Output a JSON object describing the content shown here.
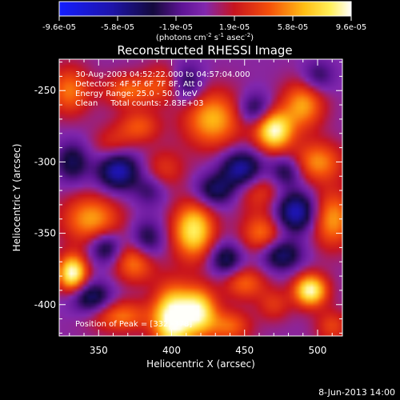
{
  "chart_data": {
    "type": "heatmap",
    "title": "Reconstructed RHESSI Image",
    "xlabel": "Heliocentric X (arcsec)",
    "ylabel": "Heliocentric Y (arcsec)",
    "xlim": [
      323,
      517
    ],
    "ylim": [
      -422,
      -228
    ],
    "xticks": [
      350,
      400,
      450,
      500
    ],
    "yticks": [
      -250,
      -300,
      -350,
      -400
    ],
    "colorbar": {
      "ticks": [
        "-9.6e-05",
        "-5.8e-05",
        "-1.9e-05",
        "1.9e-05",
        "5.8e-05",
        "9.6e-05"
      ],
      "range": [
        -9.6e-05,
        9.6e-05
      ],
      "label_main": "(photons cm",
      "label_exp1": "-2",
      "label_mid": " s",
      "label_exp2": "-1",
      "label_tail": " asec",
      "label_exp3": "-2",
      "label_end": ")"
    },
    "annotations": [
      "30-Aug-2003 04:52:22.000 to 04:57:04.000",
      "Detectors: 4F 5F 6F 7F 8F, Att 0",
      "Energy Range: 25.0 - 50.0 keV",
      "Clean     Total counts: 2.83E+03"
    ],
    "peak_text": "Position of Peak = [332,-378]",
    "blobs": [
      {
        "x": 332,
        "y": -378,
        "v": 1.0,
        "sx": 7,
        "sy": 9
      },
      {
        "x": 400,
        "y": -410,
        "v": 1.0,
        "sx": 9,
        "sy": 16
      },
      {
        "x": 418,
        "y": -405,
        "v": 0.9,
        "sx": 9,
        "sy": 12
      },
      {
        "x": 470,
        "y": -278,
        "v": 0.95,
        "sx": 9,
        "sy": 10
      },
      {
        "x": 495,
        "y": -390,
        "v": 0.95,
        "sx": 8,
        "sy": 8
      },
      {
        "x": 415,
        "y": -348,
        "v": 0.85,
        "sx": 10,
        "sy": 14
      },
      {
        "x": 428,
        "y": -270,
        "v": 0.65,
        "sx": 14,
        "sy": 14
      },
      {
        "x": 490,
        "y": -260,
        "v": 0.6,
        "sx": 10,
        "sy": 12
      },
      {
        "x": 510,
        "y": -340,
        "v": 0.6,
        "sx": 10,
        "sy": 14
      },
      {
        "x": 500,
        "y": -300,
        "v": 0.55,
        "sx": 12,
        "sy": 10
      },
      {
        "x": 330,
        "y": -250,
        "v": 0.5,
        "sx": 10,
        "sy": 12
      },
      {
        "x": 370,
        "y": -250,
        "v": 0.45,
        "sx": 12,
        "sy": 8
      },
      {
        "x": 345,
        "y": -340,
        "v": 0.6,
        "sx": 14,
        "sy": 12
      },
      {
        "x": 375,
        "y": -370,
        "v": 0.55,
        "sx": 10,
        "sy": 10
      },
      {
        "x": 365,
        "y": -408,
        "v": 0.5,
        "sx": 14,
        "sy": 8
      },
      {
        "x": 450,
        "y": -385,
        "v": 0.45,
        "sx": 10,
        "sy": 8
      },
      {
        "x": 462,
        "y": -350,
        "v": 0.5,
        "sx": 10,
        "sy": 10
      },
      {
        "x": 395,
        "y": -305,
        "v": 0.3,
        "sx": 10,
        "sy": 10
      },
      {
        "x": 460,
        "y": -320,
        "v": 0.35,
        "sx": 12,
        "sy": 10
      },
      {
        "x": 360,
        "y": -290,
        "v": 0.35,
        "sx": 10,
        "sy": 10
      },
      {
        "x": 378,
        "y": -275,
        "v": 0.4,
        "sx": 10,
        "sy": 8
      },
      {
        "x": 395,
        "y": -245,
        "v": 0.35,
        "sx": 10,
        "sy": 10
      },
      {
        "x": 440,
        "y": -415,
        "v": 0.45,
        "sx": 10,
        "sy": 8
      },
      {
        "x": 510,
        "y": -415,
        "v": 0.35,
        "sx": 8,
        "sy": 8
      },
      {
        "x": 470,
        "y": -400,
        "v": 0.3,
        "sx": 8,
        "sy": 8
      },
      {
        "x": 363,
        "y": -305,
        "v": -0.8,
        "sx": 10,
        "sy": 10
      },
      {
        "x": 355,
        "y": -360,
        "v": -0.5,
        "sx": 8,
        "sy": 8
      },
      {
        "x": 345,
        "y": -395,
        "v": -0.55,
        "sx": 10,
        "sy": 8
      },
      {
        "x": 410,
        "y": -245,
        "v": -0.45,
        "sx": 8,
        "sy": 10
      },
      {
        "x": 457,
        "y": -263,
        "v": -0.45,
        "sx": 8,
        "sy": 8
      },
      {
        "x": 448,
        "y": -305,
        "v": -0.7,
        "sx": 10,
        "sy": 9
      },
      {
        "x": 478,
        "y": -307,
        "v": -0.45,
        "sx": 8,
        "sy": 8
      },
      {
        "x": 430,
        "y": -320,
        "v": -0.5,
        "sx": 10,
        "sy": 8
      },
      {
        "x": 485,
        "y": -335,
        "v": -0.75,
        "sx": 10,
        "sy": 10
      },
      {
        "x": 475,
        "y": -365,
        "v": -0.55,
        "sx": 10,
        "sy": 8
      },
      {
        "x": 383,
        "y": -355,
        "v": -0.45,
        "sx": 8,
        "sy": 10
      },
      {
        "x": 332,
        "y": -300,
        "v": -0.45,
        "sx": 8,
        "sy": 10
      },
      {
        "x": 437,
        "y": -368,
        "v": -0.5,
        "sx": 8,
        "sy": 8
      },
      {
        "x": 500,
        "y": -240,
        "v": -0.35,
        "sx": 8,
        "sy": 8
      },
      {
        "x": 385,
        "y": -320,
        "v": -0.3,
        "sx": 8,
        "sy": 8
      }
    ]
  },
  "footer": {
    "date": "8-Jun-2013 14:00"
  }
}
